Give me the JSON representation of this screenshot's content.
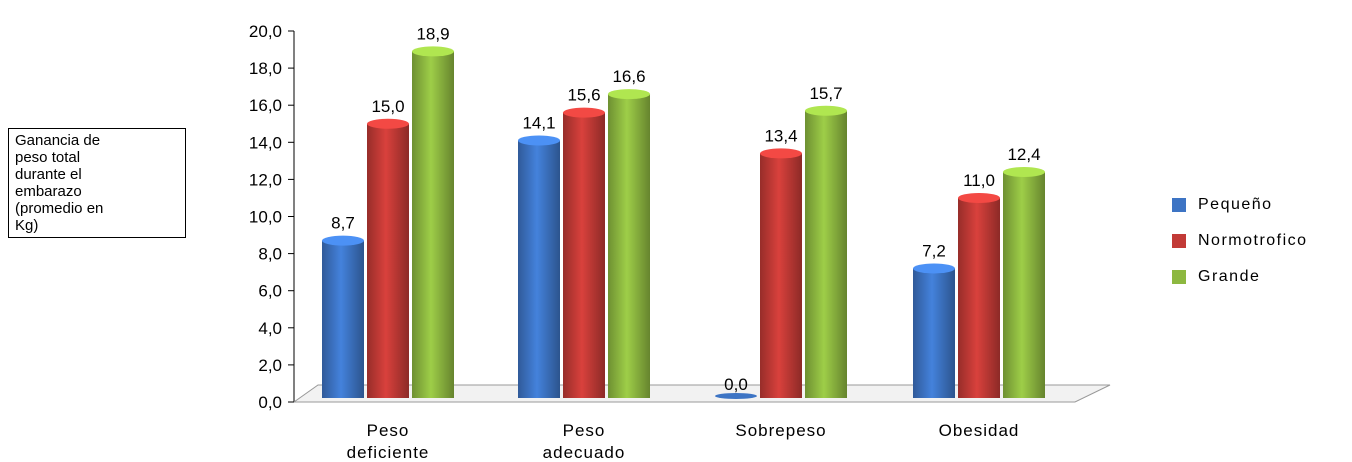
{
  "chart_data": {
    "type": "bar",
    "title": "",
    "xlabel": "",
    "ylabel": "Ganancia de\npeso total\ndurante el\nembarazo\n(promedio en\nKg)",
    "ylim": [
      0,
      20
    ],
    "yticks": [
      "0,0",
      "2,0",
      "4,0",
      "6,0",
      "8,0",
      "10,0",
      "12,0",
      "14,0",
      "16,0",
      "18,0",
      "20,0"
    ],
    "categories": [
      "Peso\ndeficiente",
      "Peso\nadecuado",
      "Sobrepeso",
      "Obesidad"
    ],
    "series": [
      {
        "name": "Pequeño",
        "values": [
          8.7,
          14.1,
          0.0,
          7.2
        ],
        "labels": [
          "8,7",
          "14,1",
          "0,0",
          "7,2"
        ],
        "color": "#3d74c4"
      },
      {
        "name": "Normotrofico",
        "values": [
          15.0,
          15.6,
          13.4,
          11.0
        ],
        "labels": [
          "15,0",
          "15,6",
          "13,4",
          "11,0"
        ],
        "color": "#c23a36"
      },
      {
        "name": "Grande",
        "values": [
          18.9,
          16.6,
          15.7,
          12.4
        ],
        "labels": [
          "18,9",
          "16,6",
          "15,7",
          "12,4"
        ],
        "color": "#8db840"
      }
    ],
    "legend_position": "right",
    "grid": false
  }
}
